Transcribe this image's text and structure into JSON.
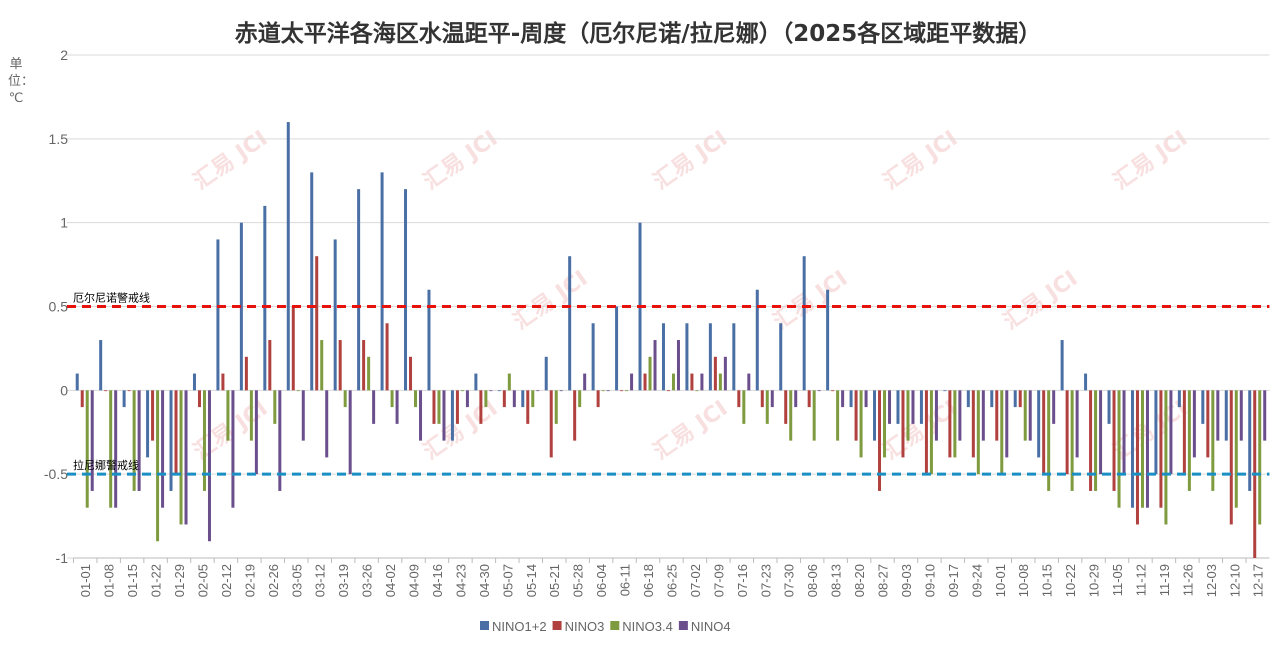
{
  "chart_data": {
    "type": "bar",
    "title": "赤道太平洋各海区水温距平-周度（厄尔尼诺/拉尼娜）（2025各区域距平数据）",
    "ylabel": "单位：℃",
    "ylim": [
      -1,
      2
    ],
    "yticks": [
      2,
      1.5,
      1,
      0.5,
      0,
      -0.5,
      -1
    ],
    "ytick_labels": [
      "2",
      "1.5",
      "1",
      "0.5",
      "0",
      "-0.5",
      "-1"
    ],
    "grid": true,
    "legend_position": "bottom",
    "watermark": "汇易 JCI",
    "categories": [
      "01-01",
      "01-08",
      "01-15",
      "01-22",
      "01-29",
      "02-05",
      "02-12",
      "02-19",
      "02-26",
      "03-05",
      "03-12",
      "03-19",
      "03-26",
      "04-02",
      "04-09",
      "04-16",
      "04-23",
      "04-30",
      "05-07",
      "05-14",
      "05-21",
      "05-28",
      "06-04",
      "06-11",
      "06-18",
      "06-25",
      "07-02",
      "07-09",
      "07-16",
      "07-23",
      "07-30",
      "08-06",
      "08-13",
      "08-20",
      "08-27",
      "09-03",
      "09-10",
      "09-17",
      "09-24",
      "10-01",
      "10-08",
      "10-15",
      "10-22",
      "10-29",
      "11-05",
      "11-12",
      "11-19",
      "11-26",
      "12-03",
      "12-10",
      "12-17"
    ],
    "series": [
      {
        "name": "NINO1+2",
        "color": "#4a6fa5",
        "values": [
          0.1,
          0.3,
          -0.1,
          -0.4,
          -0.6,
          0.1,
          0.9,
          1.0,
          1.1,
          1.6,
          1.3,
          0.9,
          1.2,
          1.3,
          1.2,
          0.6,
          -0.3,
          0.1,
          0,
          -0.1,
          0.2,
          0.8,
          0.4,
          0.5,
          1.0,
          0.4,
          0.4,
          0.4,
          0.4,
          0.6,
          0.4,
          0.8,
          0.6,
          -0.1,
          -0.3,
          -0.2,
          -0.2,
          0,
          -0.1,
          -0.1,
          -0.1,
          -0.4,
          0.3,
          0.1,
          -0.2,
          -0.7,
          -0.5,
          -0.1,
          -0.2,
          -0.3,
          -0.6
        ]
      },
      {
        "name": "NINO3",
        "color": "#b0413e",
        "values": [
          -0.1,
          0,
          0,
          -0.3,
          -0.5,
          -0.1,
          0.1,
          0.2,
          0.3,
          0.5,
          0.8,
          0.3,
          0.3,
          0.4,
          0.2,
          -0.2,
          -0.2,
          -0.2,
          -0.1,
          -0.2,
          -0.4,
          -0.3,
          -0.1,
          0,
          0.1,
          0,
          0.1,
          0.2,
          -0.1,
          -0.1,
          -0.2,
          -0.1,
          0,
          -0.3,
          -0.6,
          -0.4,
          -0.5,
          -0.4,
          -0.4,
          -0.3,
          -0.1,
          -0.5,
          -0.5,
          -0.6,
          -0.6,
          -0.8,
          -0.7,
          -0.5,
          -0.4,
          -0.8,
          -1.0
        ]
      },
      {
        "name": "NINO3.4",
        "color": "#7f9b3f",
        "values": [
          -0.7,
          -0.7,
          -0.6,
          -0.9,
          -0.8,
          -0.6,
          -0.3,
          -0.3,
          -0.2,
          0,
          0.3,
          -0.1,
          0.2,
          -0.1,
          -0.1,
          -0.2,
          0,
          -0.1,
          0.1,
          -0.1,
          -0.2,
          -0.1,
          0,
          0,
          0.2,
          0.1,
          0,
          0.1,
          -0.2,
          -0.2,
          -0.3,
          -0.3,
          -0.3,
          -0.4,
          -0.4,
          -0.3,
          -0.5,
          -0.4,
          -0.5,
          -0.5,
          -0.3,
          -0.6,
          -0.6,
          -0.6,
          -0.7,
          -0.7,
          -0.8,
          -0.6,
          -0.6,
          -0.7,
          -0.8
        ]
      },
      {
        "name": "NINO4",
        "color": "#6a4f8c",
        "values": [
          -0.6,
          -0.7,
          -0.6,
          -0.7,
          -0.8,
          -0.9,
          -0.7,
          -0.5,
          -0.6,
          -0.3,
          -0.4,
          -0.5,
          -0.2,
          -0.2,
          -0.3,
          -0.3,
          -0.1,
          0,
          -0.1,
          0,
          0,
          0.1,
          0,
          0.1,
          0.3,
          0.3,
          0.1,
          0.2,
          0.1,
          -0.1,
          -0.1,
          0,
          -0.1,
          -0.1,
          -0.2,
          -0.2,
          -0.3,
          -0.3,
          -0.3,
          -0.4,
          -0.3,
          -0.2,
          -0.4,
          -0.5,
          -0.5,
          -0.7,
          -0.5,
          -0.4,
          -0.3,
          -0.3,
          -0.3
        ]
      }
    ],
    "reference_lines": [
      {
        "label": "厄尔尼诺警戒线",
        "value": 0.5,
        "color": "#e8120c"
      },
      {
        "label": "拉尼娜警戒线",
        "value": -0.5,
        "color": "#1a8fc4"
      }
    ]
  }
}
